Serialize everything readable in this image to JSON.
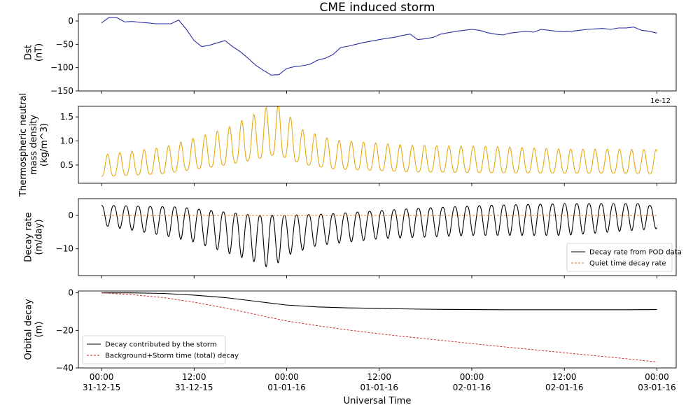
{
  "chart_data": {
    "title": "CME induced storm",
    "xlabel": "Universal Time",
    "x_ticks": [
      {
        "t": 0,
        "time": "00:00",
        "date": "31-12-15"
      },
      {
        "t": 12,
        "time": "12:00",
        "date": "31-12-15"
      },
      {
        "t": 24,
        "time": "00:00",
        "date": "01-01-16"
      },
      {
        "t": 36,
        "time": "12:00",
        "date": "01-01-16"
      },
      {
        "t": 48,
        "time": "00:00",
        "date": "02-01-16"
      },
      {
        "t": 60,
        "time": "12:00",
        "date": "02-01-16"
      },
      {
        "t": 72,
        "time": "00:00",
        "date": "03-01-16"
      }
    ],
    "xlim": [
      -3,
      74.5
    ],
    "panels": [
      {
        "id": "dst",
        "type": "line",
        "ylabel": [
          "Dst",
          "(nT)"
        ],
        "ylim": [
          -150,
          15
        ],
        "yticks": [
          0,
          -50,
          -100,
          -150
        ],
        "offset_text": "",
        "series": [
          {
            "color": "#2b2fa0",
            "style": "solid",
            "x": [
              0,
              1,
              2,
              3,
              4,
              5,
              6,
              7,
              8,
              9,
              10,
              11,
              12,
              13,
              14,
              15,
              16,
              17,
              18,
              19,
              20,
              21,
              22,
              23,
              24,
              25,
              26,
              27,
              28,
              29,
              30,
              31,
              32,
              33,
              34,
              35,
              36,
              37,
              38,
              39,
              40,
              41,
              42,
              43,
              44,
              45,
              46,
              47,
              48,
              49,
              50,
              51,
              52,
              53,
              54,
              55,
              56,
              57,
              58,
              59,
              60,
              61,
              62,
              63,
              64,
              65,
              66,
              67,
              68,
              69,
              70,
              71,
              72
            ],
            "y": [
              -4,
              8,
              7,
              -2,
              -1,
              -3,
              -4,
              -6,
              -6,
              -6,
              2,
              -18,
              -42,
              -55,
              -52,
              -47,
              -42,
              -55,
              -66,
              -80,
              -95,
              -106,
              -116,
              -115,
              -102,
              -98,
              -96,
              -93,
              -84,
              -80,
              -72,
              -57,
              -54,
              -50,
              -46,
              -43,
              -40,
              -37,
              -35,
              -31,
              -28,
              -40,
              -38,
              -35,
              -28,
              -25,
              -22,
              -20,
              -18,
              -20,
              -25,
              -28,
              -30,
              -26,
              -24,
              -22,
              -24,
              -18,
              -20,
              -22,
              -23,
              -22,
              -20,
              -18,
              -17,
              -16,
              -18,
              -15,
              -15,
              -13,
              -20,
              -22,
              -26
            ]
          }
        ]
      },
      {
        "id": "density",
        "type": "line",
        "ylabel": [
          "Thermospheric neutral",
          "mass density",
          "(kg/m^3)"
        ],
        "ylim": [
          0.12,
          1.72
        ],
        "yticks": [
          0.5,
          1.0,
          1.5
        ],
        "ytick_labels": [
          "0.5",
          "1.0",
          "1.5"
        ],
        "offset_text": "1e-12",
        "series": [
          {
            "color": "#e8a910",
            "style": "solid",
            "model": "oscillation",
            "t_start": 0,
            "t_end": 72,
            "period_hours": 1.58,
            "baseline_knots_t": [
              0,
              8,
              16,
              20,
              22,
              23,
              26,
              30,
              40,
              50,
              60,
              66,
              72
            ],
            "baseline_knots_v": [
              0.26,
              0.32,
              0.5,
              0.62,
              0.7,
              0.7,
              0.52,
              0.42,
              0.36,
              0.34,
              0.33,
              0.33,
              0.32
            ],
            "amplitude_knots_t": [
              0,
              8,
              16,
              20,
              22,
              23,
              26,
              30,
              40,
              50,
              60,
              66,
              72
            ],
            "amplitude_knots_v": [
              0.45,
              0.55,
              0.75,
              0.95,
              1.05,
              1.05,
              0.72,
              0.6,
              0.55,
              0.55,
              0.5,
              0.5,
              0.5
            ]
          }
        ]
      },
      {
        "id": "decay_rate",
        "type": "line",
        "ylabel": [
          "Decay rate",
          "(m/day)"
        ],
        "ylim": [
          -18,
          5
        ],
        "yticks": [
          0,
          -10
        ],
        "offset_text": "",
        "legend": {
          "placement": "lower-right"
        },
        "series": [
          {
            "name": "Decay rate from POD data",
            "color": "#000000",
            "style": "solid",
            "model": "oscillation",
            "t_start": 0,
            "t_end": 72,
            "period_hours": 1.58,
            "top_knots_t": [
              0,
              10,
              20,
              24,
              30,
              40,
              50,
              60,
              70,
              72
            ],
            "top_knots_v": [
              3,
              2.5,
              0,
              0,
              0.5,
              2,
              3,
              3.5,
              3.5,
              2.5
            ],
            "bottom_knots_t": [
              0,
              8,
              12,
              16,
              20,
              22,
              24,
              28,
              36,
              48,
              60,
              72
            ],
            "bottom_knots_v": [
              -3,
              -6,
              -8,
              -11,
              -14,
              -16,
              -12,
              -9,
              -7,
              -6,
              -6,
              -4
            ]
          },
          {
            "name": "Quiet time decay rate",
            "color": "#e8701a",
            "style": "dashed",
            "x": [
              0,
              72
            ],
            "y": [
              0,
              0
            ]
          }
        ]
      },
      {
        "id": "orbital_decay",
        "type": "line",
        "ylabel": [
          "Orbital decay",
          "(m)"
        ],
        "ylim": [
          -40,
          1
        ],
        "yticks": [
          0,
          -20,
          -40
        ],
        "offset_text": "",
        "legend": {
          "placement": "lower-left"
        },
        "series": [
          {
            "name": "Decay contributed by the storm",
            "color": "#000000",
            "style": "solid",
            "x": [
              0,
              4,
              8,
              12,
              16,
              20,
              24,
              28,
              32,
              36,
              40,
              44,
              48,
              52,
              56,
              60,
              64,
              68,
              72
            ],
            "y": [
              0,
              0,
              -0.3,
              -1.2,
              -2.5,
              -4.5,
              -6.5,
              -7.5,
              -8,
              -8.3,
              -8.6,
              -8.8,
              -8.9,
              -9,
              -9,
              -9,
              -9,
              -9,
              -8.9
            ]
          },
          {
            "name": "Background+Storm time (total) decay",
            "color": "#cc1f1f",
            "style": "dashed",
            "x": [
              0,
              4,
              8,
              12,
              16,
              20,
              24,
              28,
              32,
              36,
              40,
              44,
              48,
              52,
              56,
              60,
              64,
              68,
              72
            ],
            "y": [
              0,
              -1,
              -2.5,
              -5,
              -8,
              -11.5,
              -15,
              -17.5,
              -19.8,
              -21.8,
              -23.6,
              -25.3,
              -27,
              -28.7,
              -30.3,
              -31.9,
              -33.5,
              -35.1,
              -36.8
            ]
          }
        ]
      }
    ]
  }
}
